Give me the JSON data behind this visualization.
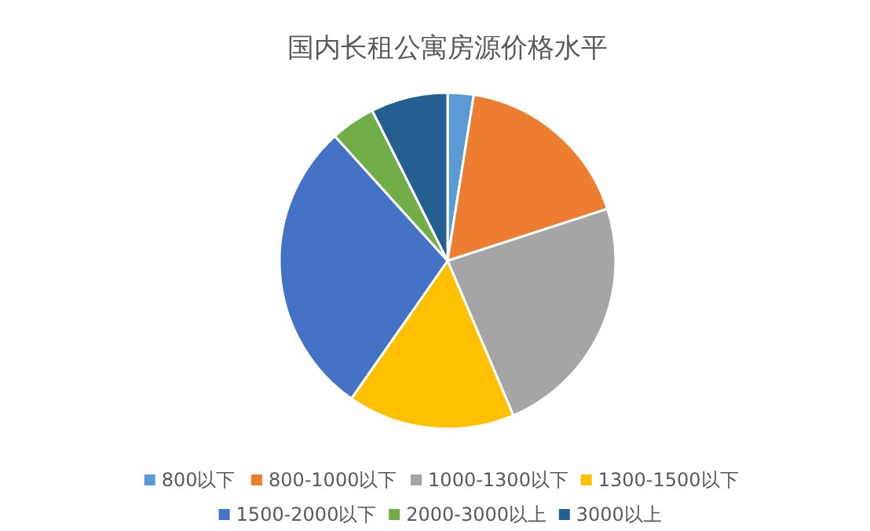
{
  "chart_data": {
    "type": "pie",
    "title": "国内长租公寓房源价格水平",
    "categories": [
      "800以下",
      "800-1000以下",
      "1000-1300以下",
      "1300-1500以下",
      "1500-2000以下",
      "2000-3000以上",
      "3000以上"
    ],
    "values": [
      2.5,
      17.5,
      23.6,
      16.1,
      28.6,
      4.3,
      7.4
    ],
    "colors": [
      "#5b9bd5",
      "#ed7d31",
      "#a5a5a5",
      "#ffc000",
      "#4472c4",
      "#70ad47",
      "#255e91"
    ],
    "legend": "bottom"
  }
}
